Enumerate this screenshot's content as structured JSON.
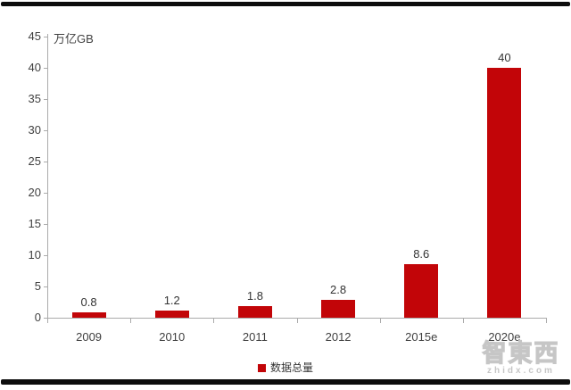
{
  "chart_data": {
    "type": "bar",
    "title": "",
    "unit_label": "万亿GB",
    "categories": [
      "2009",
      "2010",
      "2011",
      "2012",
      "2015e",
      "2020e"
    ],
    "values": [
      0.8,
      1.2,
      1.8,
      2.8,
      8.6,
      40
    ],
    "value_labels": [
      "0.8",
      "1.2",
      "1.8",
      "2.8",
      "8.6",
      "40"
    ],
    "series_name": "数据总量",
    "ylim": [
      0,
      45
    ],
    "ytick_step": 5,
    "grid": false,
    "legend_position": "bottom-center",
    "bar_color": "#c20508"
  },
  "legend": {
    "label": "数据总量"
  },
  "watermark": {
    "logo_text": "智東西",
    "site_text": "zhidx.com"
  },
  "colors": {
    "bar": "#c20508",
    "axis": "#ababab",
    "text": "#404040",
    "watermark": "#c6c6c6",
    "border": "#0d0d0d"
  }
}
